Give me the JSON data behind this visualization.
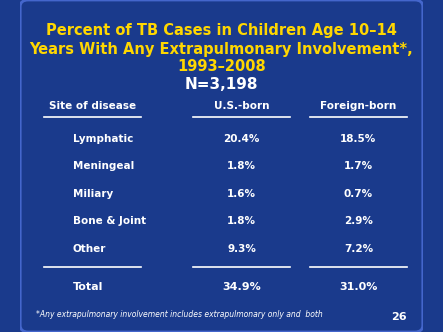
{
  "title_line1": "Percent of TB Cases in Children Age 10–14",
  "title_line2": "Years With Any Extrapulmonary Involvement*,",
  "title_line3": "1993–2008",
  "title_line4": "N=3,198",
  "title_color": "#FFD700",
  "n_color": "#FFFFFF",
  "bg_color_outer": "#1a3a8c",
  "bg_color_inner": "#1a3a8c",
  "header_col1": "Site of disease",
  "header_col2": "U.S.-born",
  "header_col3": "Foreign-born",
  "rows": [
    [
      "Lymphatic",
      "20.4%",
      "18.5%"
    ],
    [
      "Meningeal",
      "1.8%",
      "1.7%"
    ],
    [
      "Miliary",
      "1.6%",
      "0.7%"
    ],
    [
      "Bone & Joint",
      "1.8%",
      "2.9%"
    ],
    [
      "Other",
      "9.3%",
      "7.2%"
    ]
  ],
  "total_row": [
    "Total",
    "34.9%",
    "31.0%"
  ],
  "footnote": "*Any extrapulmonary involvement includes extrapulmonary only and  both",
  "slide_number": "26",
  "text_color": "#FFFFFF",
  "header_underline_color": "#FFFFFF",
  "divider_color": "#FFFFFF"
}
